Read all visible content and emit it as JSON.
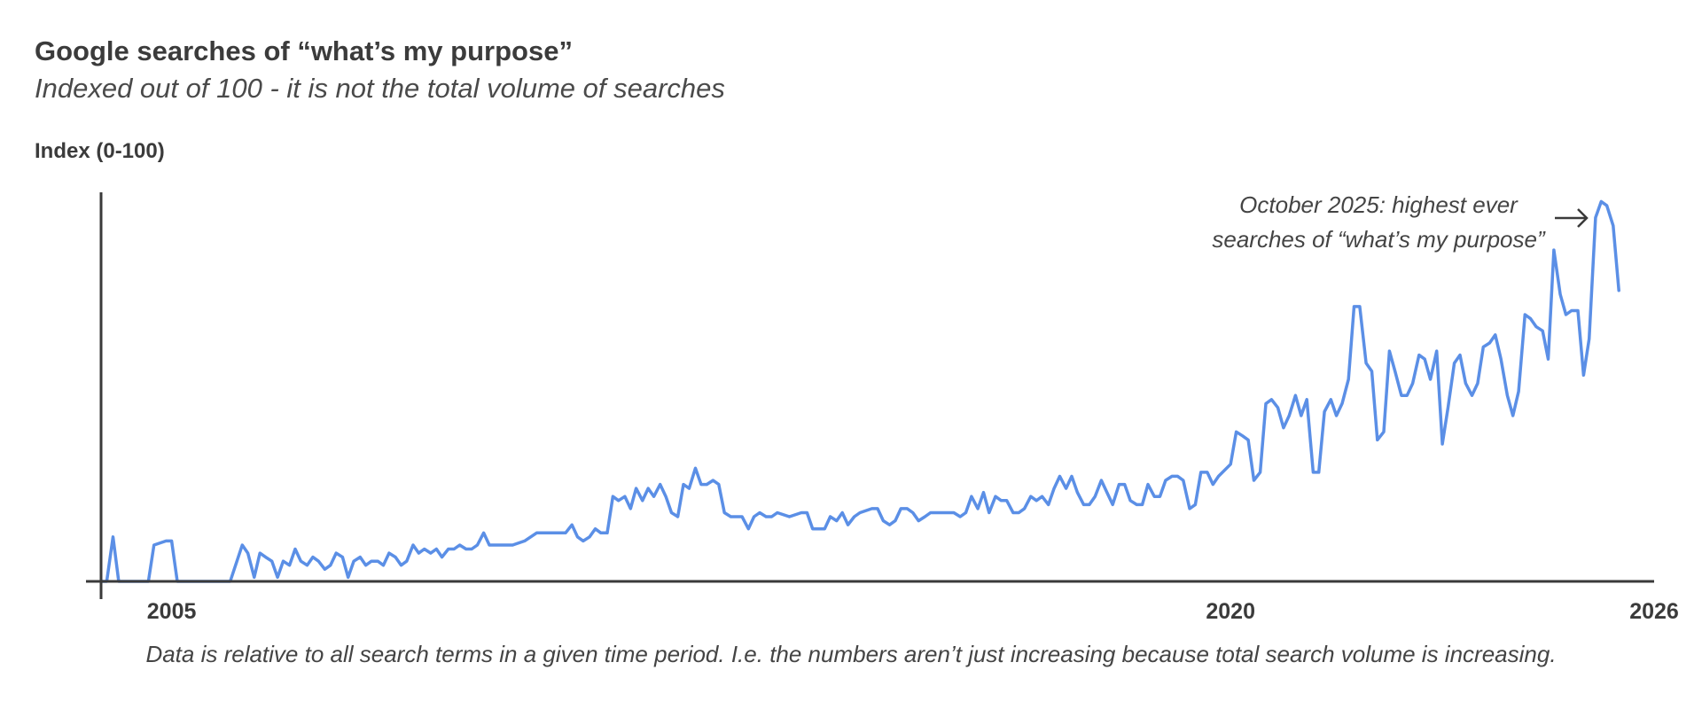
{
  "chart_data": {
    "type": "line",
    "title": "Google searches of “what’s my purpose”",
    "subtitle": "Indexed out of 100 - it is not the total volume of searches",
    "ylabel": "Index (0-100)",
    "xlabel": "",
    "xlim": [
      2004.0,
      2026.0
    ],
    "ylim": [
      0,
      100
    ],
    "x_ticks": [
      {
        "value": 2005,
        "label": "2005"
      },
      {
        "value": 2020,
        "label": "2020"
      },
      {
        "value": 2026,
        "label": "2026"
      }
    ],
    "grid": false,
    "series": [
      {
        "color": "#5b8fe6",
        "points": [
          [
            2004.0,
            0
          ],
          [
            2004.08,
            0
          ],
          [
            2004.17,
            11
          ],
          [
            2004.25,
            0
          ],
          [
            2004.33,
            0
          ],
          [
            2004.5,
            0
          ],
          [
            2004.67,
            0
          ],
          [
            2004.75,
            9
          ],
          [
            2004.92,
            10
          ],
          [
            2005.0,
            10
          ],
          [
            2005.08,
            0
          ],
          [
            2005.17,
            0
          ],
          [
            2005.33,
            0
          ],
          [
            2005.5,
            0
          ],
          [
            2005.67,
            0
          ],
          [
            2005.83,
            0
          ],
          [
            2006.0,
            9
          ],
          [
            2006.08,
            7
          ],
          [
            2006.17,
            1
          ],
          [
            2006.25,
            7
          ],
          [
            2006.33,
            6
          ],
          [
            2006.42,
            5
          ],
          [
            2006.5,
            1
          ],
          [
            2006.58,
            5
          ],
          [
            2006.67,
            4
          ],
          [
            2006.75,
            8
          ],
          [
            2006.83,
            5
          ],
          [
            2006.92,
            4
          ],
          [
            2007.0,
            6
          ],
          [
            2007.08,
            5
          ],
          [
            2007.17,
            3
          ],
          [
            2007.25,
            4
          ],
          [
            2007.33,
            7
          ],
          [
            2007.42,
            6
          ],
          [
            2007.5,
            1
          ],
          [
            2007.58,
            5
          ],
          [
            2007.67,
            6
          ],
          [
            2007.75,
            4
          ],
          [
            2007.83,
            5
          ],
          [
            2007.92,
            5
          ],
          [
            2008.0,
            4
          ],
          [
            2008.08,
            7
          ],
          [
            2008.17,
            6
          ],
          [
            2008.25,
            4
          ],
          [
            2008.33,
            5
          ],
          [
            2008.42,
            9
          ],
          [
            2008.5,
            7
          ],
          [
            2008.58,
            8
          ],
          [
            2008.67,
            7
          ],
          [
            2008.75,
            8
          ],
          [
            2008.83,
            6
          ],
          [
            2008.92,
            8
          ],
          [
            2009.0,
            8
          ],
          [
            2009.08,
            9
          ],
          [
            2009.17,
            8
          ],
          [
            2009.25,
            8
          ],
          [
            2009.33,
            9
          ],
          [
            2009.42,
            12
          ],
          [
            2009.5,
            9
          ],
          [
            2009.58,
            9
          ],
          [
            2009.67,
            9
          ],
          [
            2009.75,
            9
          ],
          [
            2009.83,
            9
          ],
          [
            2010.0,
            10
          ],
          [
            2010.17,
            12
          ],
          [
            2010.33,
            12
          ],
          [
            2010.5,
            12
          ],
          [
            2010.58,
            12
          ],
          [
            2010.67,
            14
          ],
          [
            2010.75,
            11
          ],
          [
            2010.83,
            10
          ],
          [
            2010.92,
            11
          ],
          [
            2011.0,
            13
          ],
          [
            2011.08,
            12
          ],
          [
            2011.17,
            12
          ],
          [
            2011.25,
            21
          ],
          [
            2011.33,
            20
          ],
          [
            2011.42,
            21
          ],
          [
            2011.5,
            18
          ],
          [
            2011.58,
            23
          ],
          [
            2011.67,
            20
          ],
          [
            2011.75,
            23
          ],
          [
            2011.83,
            21
          ],
          [
            2011.92,
            24
          ],
          [
            2012.0,
            21
          ],
          [
            2012.08,
            17
          ],
          [
            2012.17,
            16
          ],
          [
            2012.25,
            24
          ],
          [
            2012.33,
            23
          ],
          [
            2012.42,
            28
          ],
          [
            2012.5,
            24
          ],
          [
            2012.58,
            24
          ],
          [
            2012.67,
            25
          ],
          [
            2012.75,
            24
          ],
          [
            2012.83,
            17
          ],
          [
            2012.92,
            16
          ],
          [
            2013.0,
            16
          ],
          [
            2013.08,
            16
          ],
          [
            2013.17,
            13
          ],
          [
            2013.25,
            16
          ],
          [
            2013.33,
            17
          ],
          [
            2013.42,
            16
          ],
          [
            2013.5,
            16
          ],
          [
            2013.58,
            17
          ],
          [
            2013.75,
            16
          ],
          [
            2013.92,
            17
          ],
          [
            2014.0,
            17
          ],
          [
            2014.08,
            13
          ],
          [
            2014.25,
            13
          ],
          [
            2014.33,
            16
          ],
          [
            2014.42,
            15
          ],
          [
            2014.5,
            17
          ],
          [
            2014.58,
            14
          ],
          [
            2014.67,
            16
          ],
          [
            2014.75,
            17
          ],
          [
            2014.92,
            18
          ],
          [
            2015.0,
            18
          ],
          [
            2015.08,
            15
          ],
          [
            2015.17,
            14
          ],
          [
            2015.25,
            15
          ],
          [
            2015.33,
            18
          ],
          [
            2015.42,
            18
          ],
          [
            2015.5,
            17
          ],
          [
            2015.58,
            15
          ],
          [
            2015.67,
            16
          ],
          [
            2015.75,
            17
          ],
          [
            2015.92,
            17
          ],
          [
            2016.0,
            17
          ],
          [
            2016.08,
            17
          ],
          [
            2016.17,
            16
          ],
          [
            2016.25,
            17
          ],
          [
            2016.33,
            21
          ],
          [
            2016.42,
            18
          ],
          [
            2016.5,
            22
          ],
          [
            2016.58,
            17
          ],
          [
            2016.67,
            21
          ],
          [
            2016.75,
            20
          ],
          [
            2016.83,
            20
          ],
          [
            2016.92,
            17
          ],
          [
            2017.0,
            17
          ],
          [
            2017.08,
            18
          ],
          [
            2017.17,
            21
          ],
          [
            2017.25,
            20
          ],
          [
            2017.33,
            21
          ],
          [
            2017.42,
            19
          ],
          [
            2017.5,
            23
          ],
          [
            2017.58,
            26
          ],
          [
            2017.67,
            23
          ],
          [
            2017.75,
            26
          ],
          [
            2017.83,
            22
          ],
          [
            2017.92,
            19
          ],
          [
            2018.0,
            19
          ],
          [
            2018.08,
            21
          ],
          [
            2018.17,
            25
          ],
          [
            2018.25,
            22
          ],
          [
            2018.33,
            19
          ],
          [
            2018.42,
            24
          ],
          [
            2018.5,
            24
          ],
          [
            2018.58,
            20
          ],
          [
            2018.67,
            19
          ],
          [
            2018.75,
            19
          ],
          [
            2018.83,
            24
          ],
          [
            2018.92,
            21
          ],
          [
            2019.0,
            21
          ],
          [
            2019.08,
            25
          ],
          [
            2019.17,
            26
          ],
          [
            2019.25,
            26
          ],
          [
            2019.33,
            25
          ],
          [
            2019.42,
            18
          ],
          [
            2019.5,
            19
          ],
          [
            2019.58,
            27
          ],
          [
            2019.67,
            27
          ],
          [
            2019.75,
            24
          ],
          [
            2019.83,
            26
          ],
          [
            2020.0,
            29
          ],
          [
            2020.08,
            37
          ],
          [
            2020.17,
            36
          ],
          [
            2020.25,
            35
          ],
          [
            2020.33,
            25
          ],
          [
            2020.42,
            27
          ],
          [
            2020.5,
            44
          ],
          [
            2020.58,
            45
          ],
          [
            2020.67,
            43
          ],
          [
            2020.75,
            38
          ],
          [
            2020.83,
            41
          ],
          [
            2020.92,
            46
          ],
          [
            2021.0,
            41
          ],
          [
            2021.08,
            45
          ],
          [
            2021.17,
            27
          ],
          [
            2021.25,
            27
          ],
          [
            2021.33,
            42
          ],
          [
            2021.42,
            45
          ],
          [
            2021.5,
            41
          ],
          [
            2021.58,
            44
          ],
          [
            2021.67,
            50
          ],
          [
            2021.75,
            68
          ],
          [
            2021.83,
            68
          ],
          [
            2021.92,
            54
          ],
          [
            2022.0,
            52
          ],
          [
            2022.08,
            35
          ],
          [
            2022.17,
            37
          ],
          [
            2022.25,
            57
          ],
          [
            2022.33,
            52
          ],
          [
            2022.42,
            46
          ],
          [
            2022.5,
            46
          ],
          [
            2022.58,
            49
          ],
          [
            2022.67,
            56
          ],
          [
            2022.75,
            55
          ],
          [
            2022.83,
            50
          ],
          [
            2022.92,
            57
          ],
          [
            2023.0,
            34
          ],
          [
            2023.08,
            43
          ],
          [
            2023.17,
            54
          ],
          [
            2023.25,
            56
          ],
          [
            2023.33,
            49
          ],
          [
            2023.42,
            46
          ],
          [
            2023.5,
            49
          ],
          [
            2023.58,
            58
          ],
          [
            2023.67,
            59
          ],
          [
            2023.75,
            61
          ],
          [
            2023.83,
            55
          ],
          [
            2023.92,
            46
          ],
          [
            2024.0,
            41
          ],
          [
            2024.08,
            47
          ],
          [
            2024.17,
            66
          ],
          [
            2024.25,
            65
          ],
          [
            2024.33,
            63
          ],
          [
            2024.42,
            62
          ],
          [
            2024.5,
            55
          ],
          [
            2024.58,
            82
          ],
          [
            2024.67,
            71
          ],
          [
            2024.75,
            66
          ],
          [
            2024.83,
            67
          ],
          [
            2024.92,
            67
          ],
          [
            2025.0,
            51
          ],
          [
            2025.08,
            60
          ],
          [
            2025.17,
            90
          ],
          [
            2025.25,
            94
          ],
          [
            2025.33,
            93
          ],
          [
            2025.42,
            88
          ],
          [
            2025.5,
            72
          ]
        ]
      }
    ],
    "annotation": "October 2025: highest ever searches of “what’s my purpose”",
    "footnote": "Data is relative to all search terms in a given time period. I.e. the numbers aren’t just increasing because total search volume is increasing."
  }
}
